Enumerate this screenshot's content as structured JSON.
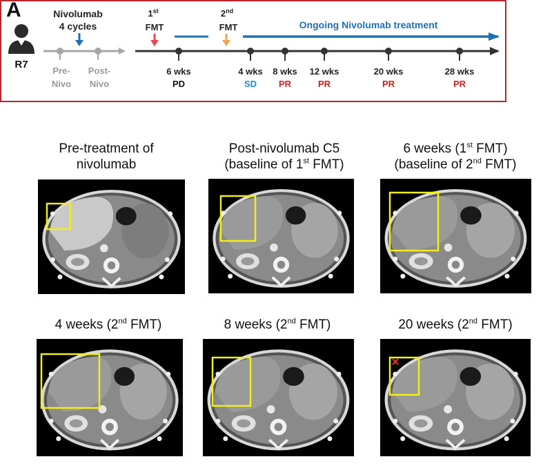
{
  "panel_label": "A",
  "timeline": {
    "patient_id": "R7",
    "drug_top": "Nivolumab",
    "drug_bottom": "4 cycles",
    "pre_nivo": [
      "Pre-",
      "Nivo"
    ],
    "post_nivo": [
      "Post-",
      "Nivo"
    ],
    "fmt1": {
      "number": "1",
      "suffix": "st",
      "label": "FMT"
    },
    "fmt2": {
      "number": "2",
      "suffix": "nd",
      "label": "FMT"
    },
    "ongoing": "Ongoing Nivolumab treatment",
    "timepoints": [
      {
        "weeks": "6 wks",
        "response": "PD"
      },
      {
        "weeks": "4 wks",
        "response": "SD"
      },
      {
        "weeks": "8 wks",
        "response": "PR"
      },
      {
        "weeks": "12 wks",
        "response": "PR"
      },
      {
        "weeks": "20 wks",
        "response": "PR"
      },
      {
        "weeks": "28 wks",
        "response": "PR"
      }
    ],
    "colors": {
      "border": "#b3262a",
      "blue": "#1f6fb5",
      "red_arrow": "#e8474f",
      "orange_arrow": "#f2a54a",
      "gray": "#a6a6a6",
      "dark": "#333333",
      "pd": "#111111",
      "sd": "#1a8fc2",
      "pr": "#cc1f1f"
    }
  },
  "scans": [
    {
      "caption_lines": [
        [
          "Pre-treatment of"
        ],
        [
          "nivolumab"
        ]
      ]
    },
    {
      "caption_lines": [
        [
          "Post-nivolumab C5"
        ],
        [
          "(baseline of 1",
          "st",
          " FMT)"
        ]
      ]
    },
    {
      "caption_lines": [
        [
          "6 weeks (1",
          "st",
          " FMT)"
        ],
        [
          "(baseline of 2",
          "nd",
          " FMT)"
        ]
      ]
    },
    {
      "caption_lines": [
        [
          "4 weeks (2",
          "nd",
          " FMT)"
        ]
      ]
    },
    {
      "caption_lines": [
        [
          "8 weeks (2",
          "nd",
          " FMT)"
        ]
      ]
    },
    {
      "caption_lines": [
        [
          "20 weeks (2",
          "nd",
          " FMT)"
        ]
      ]
    }
  ]
}
